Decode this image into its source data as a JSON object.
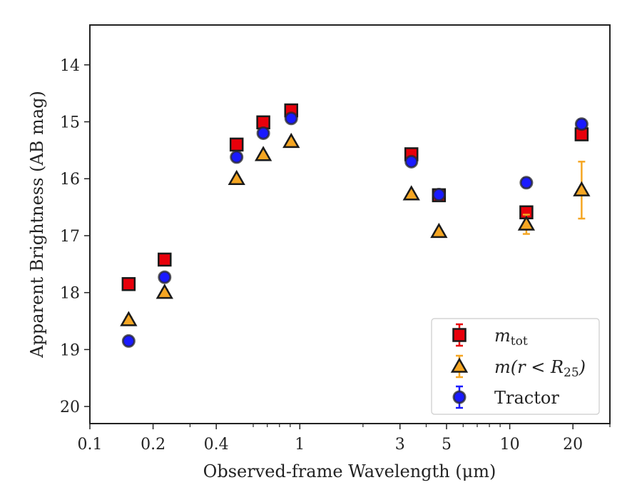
{
  "chart_data": {
    "type": "scatter",
    "xlabel": "Observed-frame Wavelength (μm)",
    "ylabel": "Apparent Brightness (AB mag)",
    "x_scale": "log",
    "xlim": [
      0.1,
      30
    ],
    "ylim": [
      20.3,
      13.3
    ],
    "y_inverted": true,
    "x_ticks": [
      {
        "value": 0.1,
        "label": "0.1"
      },
      {
        "value": 0.2,
        "label": "0.2"
      },
      {
        "value": 0.4,
        "label": "0.4"
      },
      {
        "value": 1,
        "label": "1"
      },
      {
        "value": 3,
        "label": "3"
      },
      {
        "value": 5,
        "label": "5"
      },
      {
        "value": 10,
        "label": "10"
      },
      {
        "value": 20,
        "label": "20"
      }
    ],
    "y_ticks": [
      {
        "value": 14,
        "label": "14"
      },
      {
        "value": 15,
        "label": "15"
      },
      {
        "value": 16,
        "label": "16"
      },
      {
        "value": 17,
        "label": "17"
      },
      {
        "value": 18,
        "label": "18"
      },
      {
        "value": 19,
        "label": "19"
      },
      {
        "value": 20,
        "label": "20"
      }
    ],
    "legend_position": "lower-right",
    "series": [
      {
        "name": "m_tot",
        "marker": "square",
        "color": "#e8000b",
        "errcolor": "#e8000b",
        "points": [
          {
            "x": 0.153,
            "y": 17.85,
            "err": 0.05
          },
          {
            "x": 0.227,
            "y": 17.42,
            "err": 0.05
          },
          {
            "x": 0.5,
            "y": 15.4,
            "err": 0.03
          },
          {
            "x": 0.67,
            "y": 15.01,
            "err": 0.03
          },
          {
            "x": 0.91,
            "y": 14.8,
            "err": 0.03
          },
          {
            "x": 3.4,
            "y": 15.57,
            "err": 0.03
          },
          {
            "x": 4.6,
            "y": 16.29,
            "err": 0.03
          },
          {
            "x": 12.0,
            "y": 16.59,
            "err": 0.05
          },
          {
            "x": 22.0,
            "y": 15.22,
            "err": 0.05
          }
        ]
      },
      {
        "name": "m(r < R25)",
        "marker": "triangle",
        "color": "#f5a623",
        "errcolor": "#f5a623",
        "points": [
          {
            "x": 0.153,
            "y": 18.48,
            "err": 0.05
          },
          {
            "x": 0.227,
            "y": 18.0,
            "err": 0.05
          },
          {
            "x": 0.5,
            "y": 16.0,
            "err": 0.03
          },
          {
            "x": 0.67,
            "y": 15.58,
            "err": 0.03
          },
          {
            "x": 0.91,
            "y": 15.35,
            "err": 0.03
          },
          {
            "x": 3.4,
            "y": 16.27,
            "err": 0.03
          },
          {
            "x": 4.6,
            "y": 16.93,
            "err": 0.03
          },
          {
            "x": 12.0,
            "y": 16.8,
            "err": 0.17
          },
          {
            "x": 22.0,
            "y": 16.2,
            "err": 0.5
          }
        ]
      },
      {
        "name": "Tractor",
        "marker": "circle",
        "color": "#1a1aff",
        "errcolor": "#1a1aff",
        "points": [
          {
            "x": 0.153,
            "y": 18.85,
            "err": 0.07
          },
          {
            "x": 0.227,
            "y": 17.73,
            "err": 0.07
          },
          {
            "x": 0.5,
            "y": 15.62,
            "err": 0.05
          },
          {
            "x": 0.67,
            "y": 15.2,
            "err": 0.05
          },
          {
            "x": 0.91,
            "y": 14.94,
            "err": 0.05
          },
          {
            "x": 3.4,
            "y": 15.7,
            "err": 0.05
          },
          {
            "x": 4.6,
            "y": 16.28,
            "err": 0.05
          },
          {
            "x": 12.0,
            "y": 16.07,
            "err": 0.08
          },
          {
            "x": 22.0,
            "y": 15.04,
            "err": 0.08
          }
        ]
      }
    ]
  }
}
